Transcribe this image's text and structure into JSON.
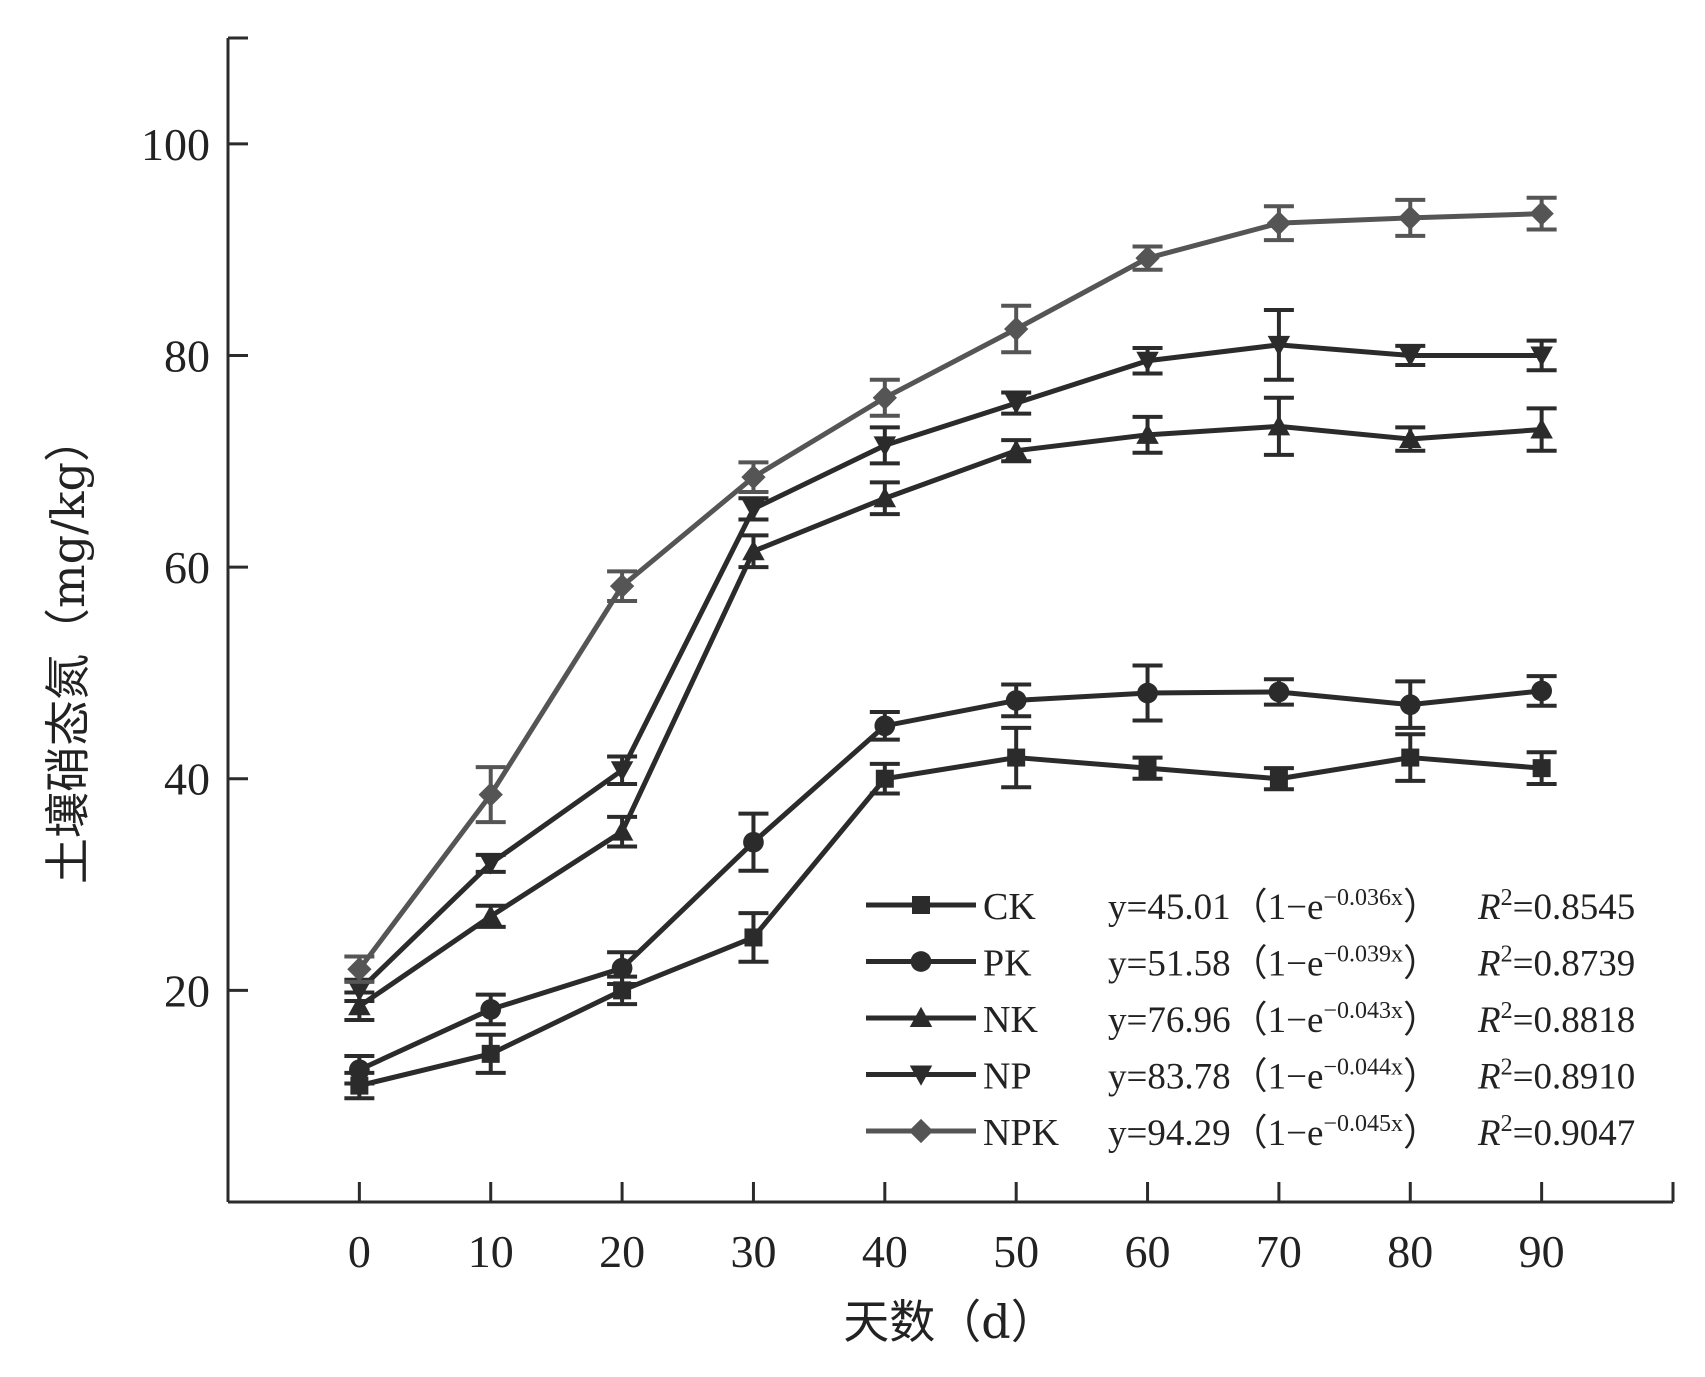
{
  "chart_data": {
    "type": "line",
    "xlabel": "天数（d）",
    "ylabel": "土壤硝态氮（mg/kg）",
    "x": [
      0,
      10,
      20,
      30,
      40,
      50,
      60,
      70,
      80,
      90
    ],
    "xlim": [
      -10,
      100
    ],
    "ylim": [
      0,
      110
    ],
    "x_ticks": [
      "0",
      "10",
      "20",
      "30",
      "40",
      "50",
      "60",
      "70",
      "80",
      "90"
    ],
    "y_ticks": [
      "20",
      "40",
      "60",
      "80",
      "100"
    ],
    "y_tick_values": [
      20,
      40,
      60,
      80,
      100
    ],
    "grid": false,
    "legend_position": "bottom-right",
    "series": [
      {
        "name": "CK",
        "marker": "square",
        "color": "#2b2b2b",
        "values": [
          11,
          14,
          20,
          25,
          40,
          42,
          41,
          40,
          42,
          41
        ],
        "errors": [
          1.2,
          1.8,
          1.3,
          2.3,
          1.4,
          2.8,
          1.0,
          1.0,
          2.2,
          1.5
        ],
        "equation": {
          "prefix": "y=45.01（1−e",
          "exponent": "−0.036x",
          "suffix": "）",
          "r2_label": "R",
          "r2_value": "=0.8545"
        }
      },
      {
        "name": "PK",
        "marker": "circle",
        "color": "#2b2b2b",
        "values": [
          12.5,
          18.2,
          22.1,
          34,
          45,
          47.4,
          48.1,
          48.2,
          47,
          48.3
        ],
        "errors": [
          1.3,
          1.4,
          1.5,
          2.7,
          1.3,
          1.5,
          2.6,
          1.2,
          2.2,
          1.4
        ],
        "equation": {
          "prefix": "y=51.58（1−e",
          "exponent": "−0.039x",
          "suffix": "）",
          "r2_label": "R",
          "r2_value": "=0.8739"
        }
      },
      {
        "name": "NK",
        "marker": "triangle-up",
        "color": "#2b2b2b",
        "values": [
          18.5,
          27,
          35,
          61.5,
          66.5,
          71,
          72.5,
          73.3,
          72.1,
          73
        ],
        "errors": [
          1.3,
          1.0,
          1.4,
          1.5,
          1.5,
          1.0,
          1.7,
          2.7,
          1.1,
          2.0
        ],
        "equation": {
          "prefix": "y=76.96（1−e",
          "exponent": "−0.043x",
          "suffix": "）",
          "r2_label": "R",
          "r2_value": "=0.8818"
        }
      },
      {
        "name": "NP",
        "marker": "triangle-down",
        "color": "#2b2b2b",
        "values": [
          20,
          32,
          40.8,
          65.5,
          71.5,
          75.5,
          79.5,
          81,
          80,
          80
        ],
        "errors": [
          1.0,
          0.8,
          1.3,
          1.0,
          1.7,
          1.0,
          1.2,
          3.3,
          0.9,
          1.4
        ],
        "equation": {
          "prefix": "y=83.78（1−e",
          "exponent": "−0.044x",
          "suffix": "）",
          "r2_label": "R",
          "r2_value": "=0.8910"
        }
      },
      {
        "name": "NPK",
        "marker": "diamond",
        "color": "#555555",
        "values": [
          22,
          38.5,
          58.2,
          68.5,
          76,
          82.5,
          89.2,
          92.5,
          93,
          93.4
        ],
        "errors": [
          1.2,
          2.6,
          1.4,
          1.4,
          1.7,
          2.2,
          1.1,
          1.6,
          1.7,
          1.5
        ],
        "equation": {
          "prefix": "y=94.29（1−e",
          "exponent": "−0.045x",
          "suffix": "）",
          "r2_label": "R",
          "r2_value": "=0.9047"
        }
      }
    ]
  }
}
